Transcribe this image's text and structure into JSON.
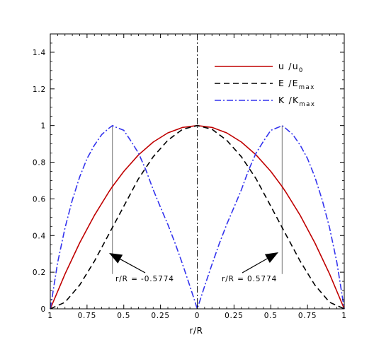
{
  "chart_data": {
    "type": "line",
    "xlabel": "r/R",
    "ylabel": "",
    "x_tick_labels": [
      "1",
      "0.75",
      "0.5",
      "0.25",
      "0",
      "0.25",
      "0.5",
      "0.75",
      "1"
    ],
    "y_tick_labels": [
      "0",
      "0.2",
      "0.4",
      "0.6",
      "0.8",
      "1",
      "1.2",
      "1.4"
    ],
    "xlim": [
      -1,
      1
    ],
    "ylim": [
      0,
      1.5
    ],
    "grid": false,
    "legend_position": "top-right",
    "legend": [
      {
        "base": "u /u",
        "sub": "0",
        "color": "#c00000",
        "dash": "solid"
      },
      {
        "base": "E /E",
        "sub": "max",
        "color": "#000000",
        "dash": "dashed"
      },
      {
        "base": "K /K",
        "sub": "max",
        "color": "#3333ee",
        "dash": "dash-dot"
      }
    ],
    "series": [
      {
        "label": "u/u0",
        "color": "#c00000",
        "x": [
          -1,
          -0.9,
          -0.8,
          -0.7,
          -0.6,
          -0.5774,
          -0.5,
          -0.4,
          -0.3,
          -0.2,
          -0.1,
          0,
          0.1,
          0.2,
          0.3,
          0.4,
          0.5,
          0.5774,
          0.6,
          0.7,
          0.8,
          0.9,
          1
        ],
        "values": [
          0,
          0.19,
          0.36,
          0.51,
          0.64,
          0.667,
          0.75,
          0.84,
          0.91,
          0.96,
          0.99,
          1,
          0.99,
          0.96,
          0.91,
          0.84,
          0.75,
          0.667,
          0.64,
          0.51,
          0.36,
          0.19,
          0
        ]
      },
      {
        "label": "E/Emax",
        "color": "#000000",
        "x": [
          -1,
          -0.9,
          -0.8,
          -0.7,
          -0.6,
          -0.5774,
          -0.5,
          -0.4,
          -0.3,
          -0.2,
          -0.1,
          0,
          0.1,
          0.2,
          0.3,
          0.4,
          0.5,
          0.5774,
          0.6,
          0.7,
          0.8,
          0.9,
          1
        ],
        "values": [
          0,
          0.036,
          0.13,
          0.26,
          0.41,
          0.444,
          0.56,
          0.71,
          0.83,
          0.92,
          0.98,
          1,
          0.98,
          0.92,
          0.83,
          0.71,
          0.56,
          0.444,
          0.41,
          0.26,
          0.13,
          0.036,
          0
        ]
      },
      {
        "label": "K/Kmax",
        "color": "#3333ee",
        "x": [
          -1,
          -0.95,
          -0.9,
          -0.85,
          -0.8,
          -0.75,
          -0.7,
          -0.65,
          -0.6,
          -0.5774,
          -0.55,
          -0.5,
          -0.45,
          -0.4,
          -0.35,
          -0.3,
          -0.25,
          -0.2,
          -0.15,
          -0.1,
          -0.05,
          0,
          0.05,
          0.1,
          0.15,
          0.2,
          0.25,
          0.3,
          0.35,
          0.4,
          0.45,
          0.5,
          0.55,
          0.5774,
          0.6,
          0.65,
          0.7,
          0.75,
          0.8,
          0.85,
          0.9,
          0.95,
          1
        ],
        "values": [
          0,
          0.253,
          0.442,
          0.594,
          0.72,
          0.82,
          0.893,
          0.951,
          0.986,
          1,
          0.99,
          0.974,
          0.914,
          0.85,
          0.758,
          0.65,
          0.554,
          0.46,
          0.356,
          0.243,
          0.124,
          0,
          0.124,
          0.243,
          0.356,
          0.46,
          0.554,
          0.65,
          0.758,
          0.85,
          0.914,
          0.974,
          0.99,
          1,
          0.986,
          0.951,
          0.893,
          0.82,
          0.72,
          0.594,
          0.442,
          0.253,
          0
        ]
      }
    ],
    "annotations": [
      {
        "text": "r/R = -0.5774",
        "x": -0.5774
      },
      {
        "text": "r/R = 0.5774",
        "x": 0.5774
      }
    ]
  }
}
